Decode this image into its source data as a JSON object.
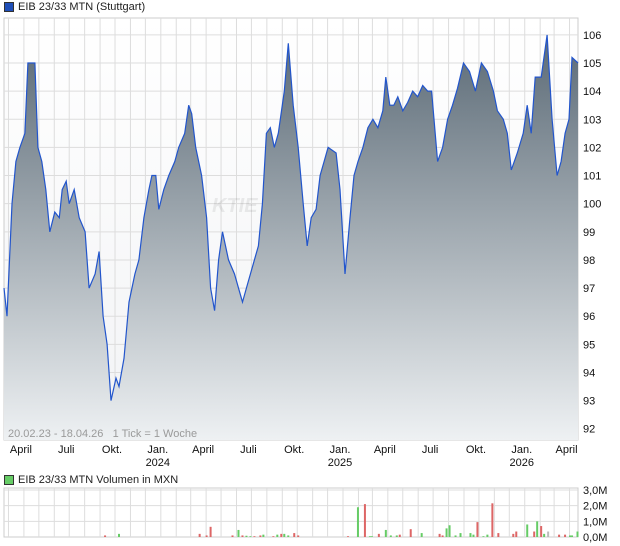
{
  "price_legend": {
    "label": "EIB 23/33 MTN (Stuttgart)",
    "color": "#1f4fb8"
  },
  "volume_legend": {
    "label": "EIB 23/33 MTN Volumen in MXN",
    "color": "#66cc66"
  },
  "footer": {
    "range": "20.02.23 - 18.04.26",
    "tick": "1 Tick = 1 Woche"
  },
  "watermark": "KTIE",
  "colors": {
    "line": "#2255cc",
    "fill_top": "#5b6a76",
    "fill_bottom": "#eef1f3",
    "grid": "#dddddd",
    "up": "#66cc66",
    "down": "#dd6666",
    "neutral": "#bbbbbb"
  },
  "chart_data": [
    {
      "type": "area",
      "title": "EIB 23/33 MTN (Stuttgart)",
      "xrange": [
        "2023-02-20",
        "2026-04-18"
      ],
      "ylim": [
        91.6,
        106.6
      ],
      "yticks": [
        92,
        93,
        94,
        95,
        96,
        97,
        98,
        99,
        100,
        101,
        102,
        103,
        104,
        105,
        106
      ],
      "grid": true,
      "xticks": [
        {
          "date": "2023-04-01",
          "label": "April",
          "year": ""
        },
        {
          "date": "2023-07-01",
          "label": "Juli",
          "year": ""
        },
        {
          "date": "2023-10-01",
          "label": "Okt.",
          "year": ""
        },
        {
          "date": "2024-01-01",
          "label": "Jan.",
          "year": "2024"
        },
        {
          "date": "2024-04-01",
          "label": "April",
          "year": ""
        },
        {
          "date": "2024-07-01",
          "label": "Juli",
          "year": ""
        },
        {
          "date": "2024-10-01",
          "label": "Okt.",
          "year": ""
        },
        {
          "date": "2025-01-01",
          "label": "Jan.",
          "year": "2025"
        },
        {
          "date": "2025-04-01",
          "label": "April",
          "year": ""
        },
        {
          "date": "2025-07-01",
          "label": "Juli",
          "year": ""
        },
        {
          "date": "2025-10-01",
          "label": "Okt.",
          "year": ""
        },
        {
          "date": "2026-01-01",
          "label": "Jan.",
          "year": "2026"
        },
        {
          "date": "2026-04-01",
          "label": "April",
          "year": ""
        }
      ],
      "points": [
        [
          "2023-02-20",
          97
        ],
        [
          "2023-02-26",
          96
        ],
        [
          "2023-03-08",
          100
        ],
        [
          "2023-03-16",
          101.5
        ],
        [
          "2023-03-24",
          102
        ],
        [
          "2023-04-03",
          102.5
        ],
        [
          "2023-04-09",
          105
        ],
        [
          "2023-04-23",
          105
        ],
        [
          "2023-04-29",
          102
        ],
        [
          "2023-05-07",
          101.5
        ],
        [
          "2023-05-15",
          100.5
        ],
        [
          "2023-05-23",
          99
        ],
        [
          "2023-06-02",
          99.7
        ],
        [
          "2023-06-11",
          99.5
        ],
        [
          "2023-06-17",
          100.5
        ],
        [
          "2023-06-25",
          100.8
        ],
        [
          "2023-07-01",
          100
        ],
        [
          "2023-07-11",
          100.5
        ],
        [
          "2023-07-21",
          99.5
        ],
        [
          "2023-08-02",
          99
        ],
        [
          "2023-08-10",
          97
        ],
        [
          "2023-08-22",
          97.5
        ],
        [
          "2023-08-30",
          98.3
        ],
        [
          "2023-09-07",
          96
        ],
        [
          "2023-09-15",
          95
        ],
        [
          "2023-09-23",
          93
        ],
        [
          "2023-10-03",
          93.8
        ],
        [
          "2023-10-09",
          93.5
        ],
        [
          "2023-10-19",
          94.5
        ],
        [
          "2023-10-29",
          96.5
        ],
        [
          "2023-11-10",
          97.5
        ],
        [
          "2023-11-18",
          98
        ],
        [
          "2023-11-28",
          99.5
        ],
        [
          "2023-12-08",
          100.5
        ],
        [
          "2023-12-14",
          101
        ],
        [
          "2023-12-22",
          101
        ],
        [
          "2023-12-28",
          99.8
        ],
        [
          "2024-01-07",
          100.5
        ],
        [
          "2024-01-17",
          101
        ],
        [
          "2024-01-29",
          101.5
        ],
        [
          "2024-02-06",
          102
        ],
        [
          "2024-02-18",
          102.5
        ],
        [
          "2024-02-26",
          103.5
        ],
        [
          "2024-03-03",
          103.2
        ],
        [
          "2024-03-11",
          102
        ],
        [
          "2024-03-23",
          101
        ],
        [
          "2024-04-02",
          99.5
        ],
        [
          "2024-04-10",
          97
        ],
        [
          "2024-04-18",
          96.2
        ],
        [
          "2024-04-26",
          98
        ],
        [
          "2024-05-04",
          99
        ],
        [
          "2024-05-16",
          98
        ],
        [
          "2024-05-28",
          97.5
        ],
        [
          "2024-06-05",
          97
        ],
        [
          "2024-06-13",
          96.5
        ],
        [
          "2024-06-21",
          97
        ],
        [
          "2024-06-29",
          97.5
        ],
        [
          "2024-07-07",
          98
        ],
        [
          "2024-07-15",
          98.5
        ],
        [
          "2024-07-23",
          100
        ],
        [
          "2024-07-31",
          102.5
        ],
        [
          "2024-08-08",
          102.7
        ],
        [
          "2024-08-16",
          102
        ],
        [
          "2024-08-24",
          102.5
        ],
        [
          "2024-09-05",
          104
        ],
        [
          "2024-09-13",
          105.7
        ],
        [
          "2024-09-23",
          103.5
        ],
        [
          "2024-10-03",
          102
        ],
        [
          "2024-10-13",
          100
        ],
        [
          "2024-10-21",
          98.5
        ],
        [
          "2024-10-29",
          99.5
        ],
        [
          "2024-11-08",
          99.8
        ],
        [
          "2024-11-16",
          101
        ],
        [
          "2024-11-24",
          101.5
        ],
        [
          "2024-12-02",
          102
        ],
        [
          "2024-12-18",
          101.8
        ],
        [
          "2024-12-26",
          100.5
        ],
        [
          "2025-01-05",
          97.5
        ],
        [
          "2025-01-15",
          99.5
        ],
        [
          "2025-01-23",
          101
        ],
        [
          "2025-01-31",
          101.5
        ],
        [
          "2025-02-10",
          102
        ],
        [
          "2025-02-20",
          102.7
        ],
        [
          "2025-03-02",
          103
        ],
        [
          "2025-03-12",
          102.7
        ],
        [
          "2025-03-22",
          103.3
        ],
        [
          "2025-03-28",
          104.5
        ],
        [
          "2025-04-05",
          103.5
        ],
        [
          "2025-04-13",
          103.5
        ],
        [
          "2025-04-21",
          103.8
        ],
        [
          "2025-05-01",
          103.3
        ],
        [
          "2025-05-11",
          103.6
        ],
        [
          "2025-05-21",
          104
        ],
        [
          "2025-05-31",
          103.8
        ],
        [
          "2025-06-10",
          104.2
        ],
        [
          "2025-06-20",
          104
        ],
        [
          "2025-06-28",
          104
        ],
        [
          "2025-07-10",
          101.5
        ],
        [
          "2025-07-20",
          102
        ],
        [
          "2025-07-30",
          103
        ],
        [
          "2025-08-09",
          103.5
        ],
        [
          "2025-08-19",
          104.1
        ],
        [
          "2025-08-31",
          105
        ],
        [
          "2025-09-12",
          104.7
        ],
        [
          "2025-09-24",
          104
        ],
        [
          "2025-10-06",
          105
        ],
        [
          "2025-10-18",
          104.7
        ],
        [
          "2025-10-30",
          104
        ],
        [
          "2025-11-07",
          103.3
        ],
        [
          "2025-11-19",
          103
        ],
        [
          "2025-11-27",
          102.5
        ],
        [
          "2025-12-05",
          101.2
        ],
        [
          "2025-12-17",
          101.8
        ],
        [
          "2025-12-29",
          102.5
        ],
        [
          "2026-01-06",
          103.5
        ],
        [
          "2026-01-14",
          102.5
        ],
        [
          "2026-01-22",
          104.5
        ],
        [
          "2026-02-03",
          104.5
        ],
        [
          "2026-02-15",
          106
        ],
        [
          "2026-02-25",
          103
        ],
        [
          "2026-03-07",
          101
        ],
        [
          "2026-03-15",
          101.5
        ],
        [
          "2026-03-23",
          102.5
        ],
        [
          "2026-03-31",
          103
        ],
        [
          "2026-04-06",
          105.2
        ],
        [
          "2026-04-18",
          105
        ]
      ]
    },
    {
      "type": "bar",
      "title": "EIB 23/33 MTN Volumen in MXN",
      "unit": "M",
      "ylim": [
        0,
        3.0
      ],
      "yticks": [
        {
          "v": 0,
          "label": "0,0M"
        },
        {
          "v": 1,
          "label": "1,0M"
        },
        {
          "v": 2,
          "label": "2,0M"
        },
        {
          "v": 3,
          "label": "3,0M"
        }
      ],
      "bars": [
        [
          "2023-09-11",
          0.1,
          "down"
        ],
        [
          "2023-10-09",
          0.2,
          "up"
        ],
        [
          "2024-03-19",
          0.2,
          "down"
        ],
        [
          "2024-04-02",
          0.1,
          "down"
        ],
        [
          "2024-04-10",
          0.65,
          "down"
        ],
        [
          "2024-05-24",
          0.1,
          "down"
        ],
        [
          "2024-06-05",
          0.45,
          "up"
        ],
        [
          "2024-06-13",
          0.1,
          "down"
        ],
        [
          "2024-06-21",
          0.08,
          "up"
        ],
        [
          "2024-06-29",
          0.05,
          "up"
        ],
        [
          "2024-07-07",
          0.05,
          "down"
        ],
        [
          "2024-07-19",
          0.1,
          "down"
        ],
        [
          "2024-07-25",
          0.15,
          "up"
        ],
        [
          "2024-08-14",
          0.05,
          "down"
        ],
        [
          "2024-08-22",
          0.15,
          "up"
        ],
        [
          "2024-08-30",
          0.2,
          "down"
        ],
        [
          "2024-09-05",
          0.2,
          "up"
        ],
        [
          "2024-09-13",
          0.1,
          "up"
        ],
        [
          "2024-09-25",
          0.25,
          "down"
        ],
        [
          "2024-10-03",
          0.1,
          "down"
        ],
        [
          "2025-01-11",
          0.05,
          "down"
        ],
        [
          "2025-01-31",
          1.9,
          "up"
        ],
        [
          "2025-02-14",
          2.1,
          "down"
        ],
        [
          "2025-02-24",
          0.05,
          "up"
        ],
        [
          "2025-02-28",
          0.05,
          "up"
        ],
        [
          "2025-03-14",
          0.2,
          "down"
        ],
        [
          "2025-03-28",
          0.45,
          "up"
        ],
        [
          "2025-04-07",
          0.1,
          "up"
        ],
        [
          "2025-04-19",
          0.1,
          "up"
        ],
        [
          "2025-04-25",
          0.15,
          "down"
        ],
        [
          "2025-05-17",
          0.5,
          "down"
        ],
        [
          "2025-06-08",
          0.25,
          "up"
        ],
        [
          "2025-07-14",
          0.2,
          "down"
        ],
        [
          "2025-07-20",
          0.1,
          "down"
        ],
        [
          "2025-07-28",
          0.55,
          "up"
        ],
        [
          "2025-08-03",
          0.75,
          "up"
        ],
        [
          "2025-08-15",
          0.1,
          "up"
        ],
        [
          "2025-08-25",
          0.25,
          "up"
        ],
        [
          "2025-09-14",
          0.25,
          "up"
        ],
        [
          "2025-09-20",
          0.15,
          "up"
        ],
        [
          "2025-09-28",
          0.95,
          "down"
        ],
        [
          "2025-10-10",
          0.05,
          "up"
        ],
        [
          "2025-10-18",
          0.15,
          "up"
        ],
        [
          "2025-10-28",
          2.15,
          "down"
        ],
        [
          "2025-11-09",
          0.25,
          "down"
        ],
        [
          "2025-12-09",
          0.2,
          "down"
        ],
        [
          "2025-12-15",
          0.35,
          "down"
        ],
        [
          "2026-01-06",
          0.8,
          "up"
        ],
        [
          "2026-01-20",
          0.35,
          "down"
        ],
        [
          "2026-01-26",
          1.0,
          "up"
        ],
        [
          "2026-02-03",
          0.7,
          "down"
        ],
        [
          "2026-02-09",
          0.2,
          "up"
        ],
        [
          "2026-02-17",
          0.35,
          "neutral"
        ],
        [
          "2026-03-11",
          0.15,
          "down"
        ],
        [
          "2026-03-23",
          0.15,
          "down"
        ],
        [
          "2026-04-02",
          0.1,
          "up"
        ],
        [
          "2026-04-06",
          0.1,
          "up"
        ],
        [
          "2026-04-17",
          0.35,
          "up"
        ]
      ]
    }
  ]
}
